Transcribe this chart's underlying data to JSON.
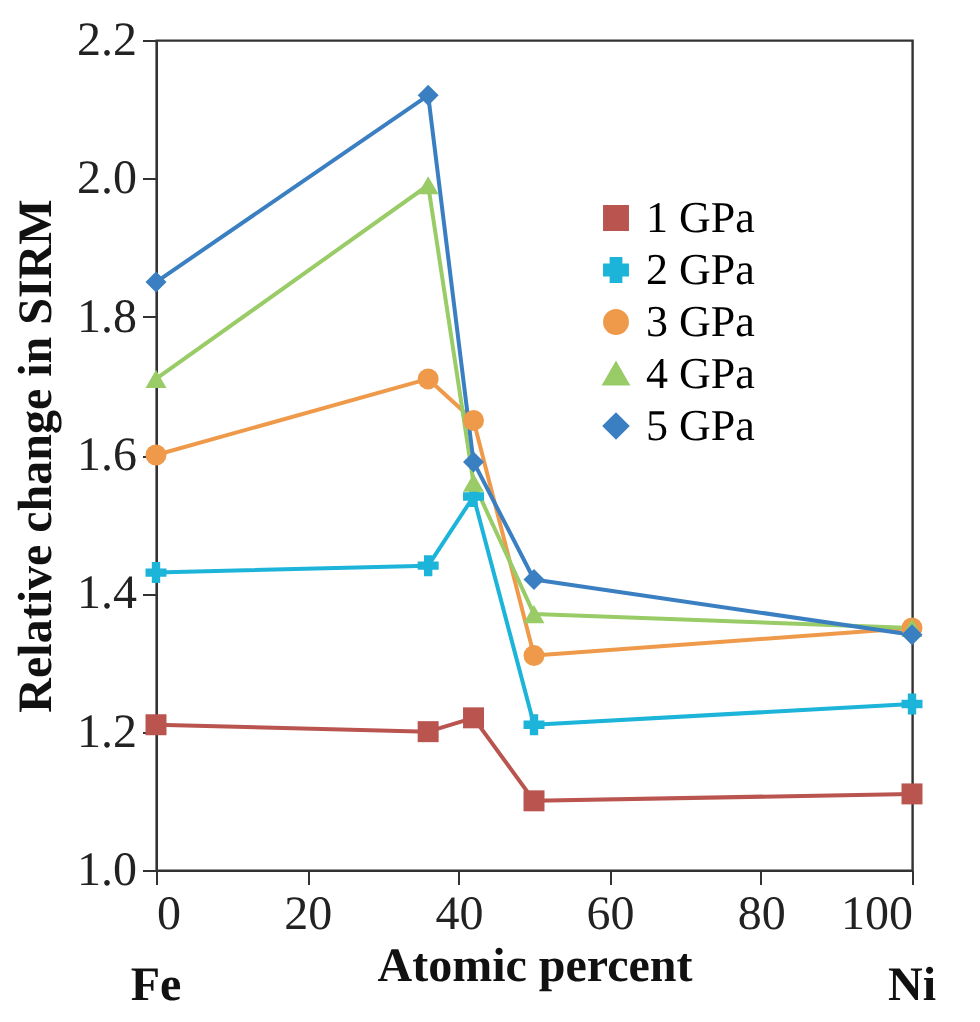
{
  "chart_data": {
    "type": "line",
    "xlabel": "Atomic percent",
    "ylabel": "Relative change in SIRM",
    "annotations": [
      "Fe",
      "Ni"
    ],
    "x": [
      0,
      36,
      42,
      50,
      100
    ],
    "series": [
      {
        "name": "1 GPa",
        "color": "#b9544f",
        "marker": "square",
        "values": [
          1.21,
          1.2,
          1.22,
          1.1,
          1.11
        ]
      },
      {
        "name": "2 GPa",
        "color": "#1cb4d8",
        "marker": "cross",
        "values": [
          1.43,
          1.44,
          1.54,
          1.21,
          1.24
        ]
      },
      {
        "name": "3 GPa",
        "color": "#ee9a4a",
        "marker": "circle",
        "values": [
          1.6,
          1.71,
          1.65,
          1.31,
          1.35
        ]
      },
      {
        "name": "4 GPa",
        "color": "#99cc66",
        "marker": "triangle",
        "values": [
          1.71,
          1.99,
          1.56,
          1.37,
          1.35
        ]
      },
      {
        "name": "5 GPa",
        "color": "#3a7fc1",
        "marker": "diamond",
        "values": [
          1.85,
          2.12,
          1.59,
          1.42,
          1.34
        ]
      }
    ],
    "xlim": [
      0,
      100
    ],
    "xticks": [
      0,
      20,
      40,
      60,
      80,
      100
    ],
    "ylim": [
      1.0,
      2.2
    ],
    "yticks": [
      {
        "value": 1.0,
        "label": "1.0"
      },
      {
        "value": 1.2,
        "label": "1.2"
      },
      {
        "value": 1.4,
        "label": "1.4"
      },
      {
        "value": 1.6,
        "label": "1.6"
      },
      {
        "value": 1.8,
        "label": "1.8"
      },
      {
        "value": 2.0,
        "label": "2.0"
      },
      {
        "value": 2.2,
        "label": "2.2"
      }
    ],
    "grid": false,
    "legend": "top right",
    "line_style": "solid"
  }
}
